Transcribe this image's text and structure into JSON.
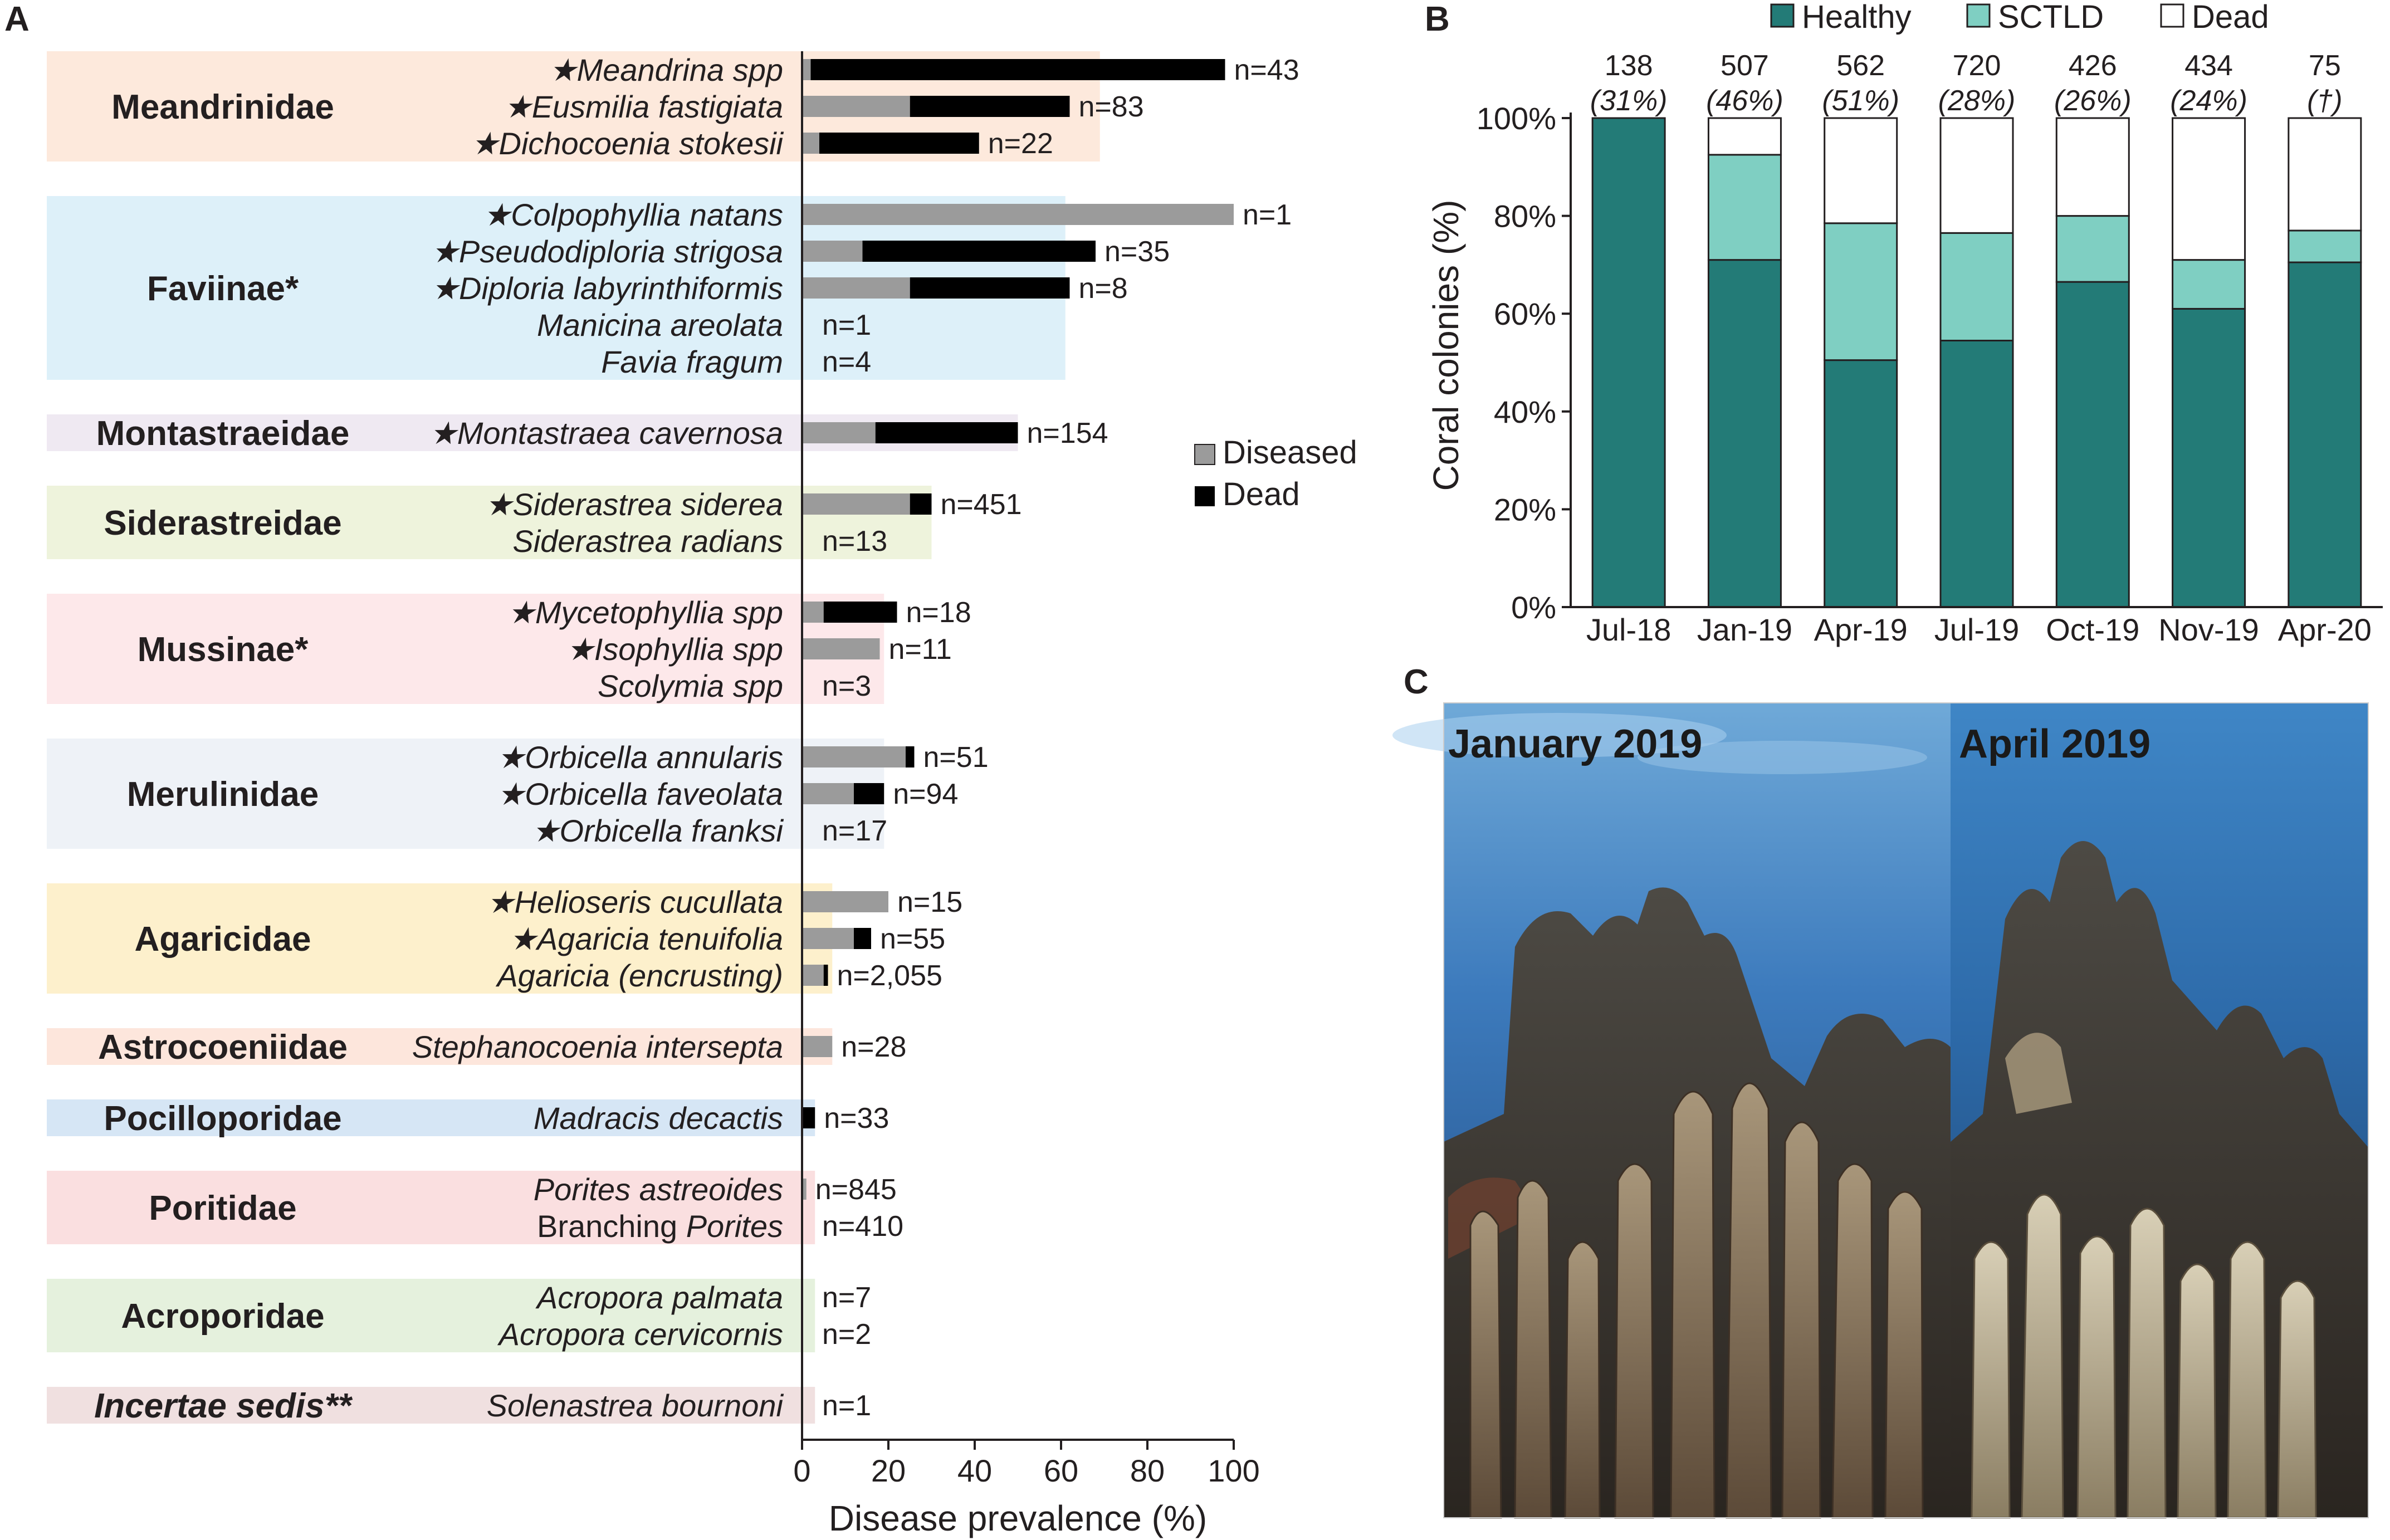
{
  "panels": {
    "a": "A",
    "b": "B",
    "c": "C"
  },
  "colors": {
    "diseased": "#9b9b9b",
    "dead": "#000000",
    "healthy": "#237b77",
    "sctld": "#7fcfc2",
    "dead_b": "#ffffff"
  },
  "chart_data": [
    {
      "type": "bar",
      "orientation": "horizontal",
      "stacked": true,
      "title": "",
      "xlabel": "Disease prevalence (%)",
      "ylabel": "",
      "xlim": [
        0,
        100
      ],
      "xticks": [
        "0",
        "20",
        "40",
        "60",
        "80",
        "100"
      ],
      "legend": [
        {
          "name": "Diseased",
          "color": "#9b9b9b"
        },
        {
          "name": "Dead",
          "color": "#000000"
        }
      ],
      "legend_position": "right",
      "groups": [
        {
          "name": "Meandrinidae",
          "italic": false,
          "color": "#fde9dc",
          "band_max": 69,
          "species": [
            {
              "label": "★Meandrina spp",
              "diseased": 2,
              "dead": 96,
              "n": "n=43"
            },
            {
              "label": "★Eusmilia fastigiata",
              "diseased": 25,
              "dead": 37,
              "n": "n=83"
            },
            {
              "label": "★Dichocoenia stokesii",
              "diseased": 4,
              "dead": 37,
              "n": "n=22"
            }
          ]
        },
        {
          "name": "Faviinae*",
          "italic": false,
          "color": "#ddf0f9",
          "band_max": 61,
          "species": [
            {
              "label": "★Colpophyllia natans",
              "diseased": 100,
              "dead": 0,
              "n": "n=1"
            },
            {
              "label": "★Pseudodiploria strigosa",
              "diseased": 14,
              "dead": 54,
              "n": "n=35"
            },
            {
              "label": "★Diploria labyrinthiformis",
              "diseased": 25,
              "dead": 37,
              "n": "n=8"
            },
            {
              "label": "Manicina areolata",
              "diseased": 0,
              "dead": 0,
              "n": "n=1"
            },
            {
              "label": "Favia fragum",
              "diseased": 0,
              "dead": 0,
              "n": "n=4"
            }
          ]
        },
        {
          "name": "Montastraeidae",
          "italic": false,
          "color": "#efe9f2",
          "band_max": 50,
          "species": [
            {
              "label": "★Montastraea cavernosa",
              "diseased": 17,
              "dead": 33,
              "n": "n=154"
            }
          ]
        },
        {
          "name": "Siderastreidae",
          "italic": false,
          "color": "#eef3dc",
          "band_max": 30,
          "species": [
            {
              "label": "★Siderastrea siderea",
              "diseased": 25,
              "dead": 5,
              "n": "n=451"
            },
            {
              "label": "Siderastrea radians",
              "diseased": 0,
              "dead": 0,
              "n": "n=13"
            }
          ]
        },
        {
          "name": "Mussinae*",
          "italic": false,
          "color": "#fde8ea",
          "band_max": 19,
          "species": [
            {
              "label": "★Mycetophyllia spp",
              "diseased": 5,
              "dead": 17,
              "n": "n=18"
            },
            {
              "label": "★Isophyllia spp",
              "diseased": 18,
              "dead": 0,
              "n": "n=11"
            },
            {
              "label": "Scolymia spp",
              "diseased": 0,
              "dead": 0,
              "n": "n=3"
            }
          ]
        },
        {
          "name": "Merulinidae",
          "italic": false,
          "color": "#eef2f7",
          "band_max": 19,
          "species": [
            {
              "label": "★Orbicella annularis",
              "diseased": 24,
              "dead": 2,
              "n": "n=51"
            },
            {
              "label": "★Orbicella faveolata",
              "diseased": 12,
              "dead": 7,
              "n": "n=94"
            },
            {
              "label": "★Orbicella franksi",
              "diseased": 0,
              "dead": 0,
              "n": "n=17"
            }
          ]
        },
        {
          "name": "Agaricidae",
          "italic": false,
          "color": "#fdf0cc",
          "band_max": 7,
          "species": [
            {
              "label": "★Helioseris cucullata",
              "diseased": 20,
              "dead": 0,
              "n": "n=15"
            },
            {
              "label": "★Agaricia tenuifolia",
              "diseased": 12,
              "dead": 4,
              "n": "n=55"
            },
            {
              "label": "Agaricia (encrusting)",
              "diseased": 5,
              "dead": 1,
              "n": "n=2,055"
            }
          ]
        },
        {
          "name": "Astrocoeniidae",
          "italic": false,
          "color": "#fde6dc",
          "band_max": 7,
          "species": [
            {
              "label": "Stephanocoenia intersepta",
              "diseased": 7,
              "dead": 0,
              "n": "n=28"
            }
          ]
        },
        {
          "name": "Pocilloporidae",
          "italic": false,
          "color": "#d6e6f5",
          "band_max": 3,
          "species": [
            {
              "label": "Madracis decactis",
              "diseased": 0,
              "dead": 3,
              "n": "n=33"
            }
          ]
        },
        {
          "name": "Poritidae",
          "italic": false,
          "color": "#fadfe0",
          "band_max": 1,
          "species": [
            {
              "label": "Porites astreoides",
              "diseased": 1,
              "dead": 0,
              "n": "n=845"
            },
            {
              "label": "Branching Porites",
              "diseased": 0,
              "dead": 0,
              "n": "n=410"
            }
          ]
        },
        {
          "name": "Acroporidae",
          "italic": false,
          "color": "#e5f1dd",
          "band_max": 0,
          "species": [
            {
              "label": "Acropora palmata",
              "diseased": 0,
              "dead": 0,
              "n": "n=7"
            },
            {
              "label": "Acropora cervicornis",
              "diseased": 0,
              "dead": 0,
              "n": "n=2"
            }
          ]
        },
        {
          "name": "Incertae sedis**",
          "italic": true,
          "color": "#f0e0e0",
          "band_max": 0,
          "species": [
            {
              "label": "Solenastrea bournoni",
              "diseased": 0,
              "dead": 0,
              "n": "n=1"
            }
          ]
        }
      ]
    },
    {
      "type": "bar",
      "orientation": "vertical",
      "stacked": true,
      "title": "",
      "xlabel": "",
      "ylabel": "Coral colonies (%)",
      "ylim": [
        0,
        100
      ],
      "yticks": [
        "0%",
        "20%",
        "40%",
        "60%",
        "80%",
        "100%"
      ],
      "categories": [
        "Jul-18",
        "Jan-19",
        "Apr-19",
        "Jul-19",
        "Oct-19",
        "Nov-19",
        "Apr-20"
      ],
      "top_counts": [
        "138",
        "507",
        "562",
        "720",
        "426",
        "434",
        "75"
      ],
      "top_percents": [
        "(31%)",
        "(46%)",
        "(51%)",
        "(28%)",
        "(26%)",
        "(24%)",
        "(†)"
      ],
      "series": [
        {
          "name": "Healthy",
          "values": [
            100,
            71,
            50.5,
            54.5,
            66.5,
            61,
            70.5
          ]
        },
        {
          "name": "SCTLD",
          "values": [
            0,
            21.5,
            28,
            22,
            13.5,
            10,
            6.5
          ]
        },
        {
          "name": "Dead",
          "values": [
            0,
            7.5,
            21.5,
            23.5,
            20,
            29,
            23
          ]
        }
      ],
      "legend_position": "top"
    }
  ],
  "photos": {
    "left_label": "January 2019",
    "right_label": "April 2019"
  }
}
